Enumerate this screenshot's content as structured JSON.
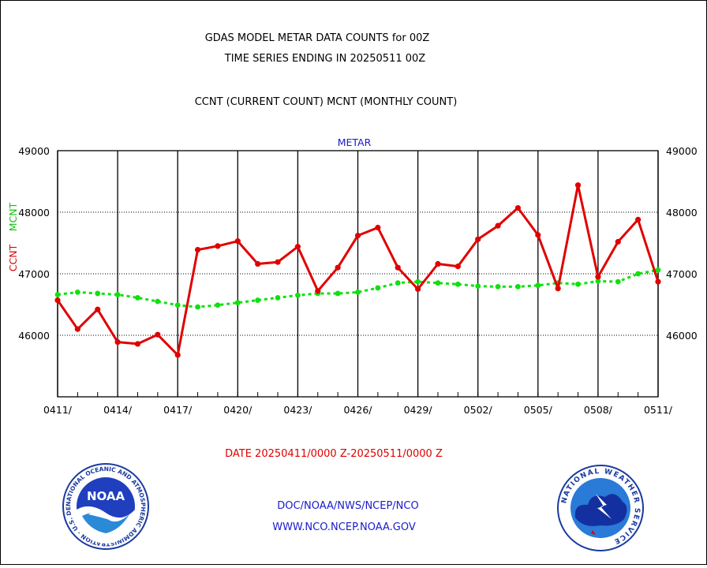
{
  "header": {
    "title_line1": "GDAS MODEL METAR DATA COUNTS for 00Z",
    "title_line2": "TIME SERIES ENDING IN 20250511 00Z",
    "legend_line": "CCNT (CURRENT COUNT) MCNT (MONTHLY COUNT)"
  },
  "footer": {
    "date_range": "DATE 20250411/0000 Z-20250511/0000 Z",
    "org_line": "DOC/NOAA/NWS/NCEP/NCO",
    "url_line": "WWW.NCO.NCEP.NOAA.GOV",
    "noaa_logo_text": "NOAA",
    "noaa_ring_text": "NATIONAL OCEANIC AND ATMOSPHERIC ADMINISTRATION · U.S. DEPARTMENT OF COMMERCE ·",
    "nws_ring_text": "NATIONAL WEATHER SERVICE"
  },
  "colors": {
    "ccnt": "#e00000",
    "mcnt": "#10e010",
    "grid": "#000000",
    "link_text": "#1a1acc"
  },
  "chart_data": {
    "type": "line",
    "panel_title": "METAR",
    "ylabel_ccnt": "CCNT",
    "ylabel_mcnt": "MCNT",
    "ylim": [
      45000,
      49000
    ],
    "y_ticks": [
      46000,
      47000,
      48000,
      49000
    ],
    "y_tick_labels": [
      "46000",
      "47000",
      "48000",
      "49000"
    ],
    "x_tick_labels": [
      "0411/",
      "0414/",
      "0417/",
      "0420/",
      "0423/",
      "0426/",
      "0429/",
      "0502/",
      "0505/",
      "0508/",
      "0511/"
    ],
    "x_dates": [
      "0411",
      "0412",
      "0413",
      "0414",
      "0415",
      "0416",
      "0417",
      "0418",
      "0419",
      "0420",
      "0421",
      "0422",
      "0423",
      "0424",
      "0425",
      "0426",
      "0427",
      "0428",
      "0429",
      "0430",
      "0501",
      "0502",
      "0503",
      "0504",
      "0505",
      "0506",
      "0507",
      "0508",
      "0509",
      "0510",
      "0511"
    ],
    "grid": true,
    "series": [
      {
        "name": "CCNT",
        "values": [
          46570,
          46100,
          46420,
          45890,
          45860,
          46010,
          45680,
          47390,
          47450,
          47530,
          47160,
          47190,
          47440,
          46720,
          47100,
          47620,
          47750,
          47100,
          46750,
          47160,
          47120,
          47560,
          47780,
          48070,
          47630,
          46760,
          48440,
          46950,
          47520,
          47880,
          46870
        ]
      },
      {
        "name": "MCNT",
        "values": [
          46660,
          46700,
          46680,
          46660,
          46610,
          46550,
          46490,
          46460,
          46490,
          46530,
          46570,
          46610,
          46650,
          46680,
          46680,
          46700,
          46770,
          46850,
          46870,
          46850,
          46830,
          46800,
          46790,
          46790,
          46810,
          46850,
          46830,
          46880,
          46870,
          47000,
          47060
        ]
      }
    ]
  }
}
